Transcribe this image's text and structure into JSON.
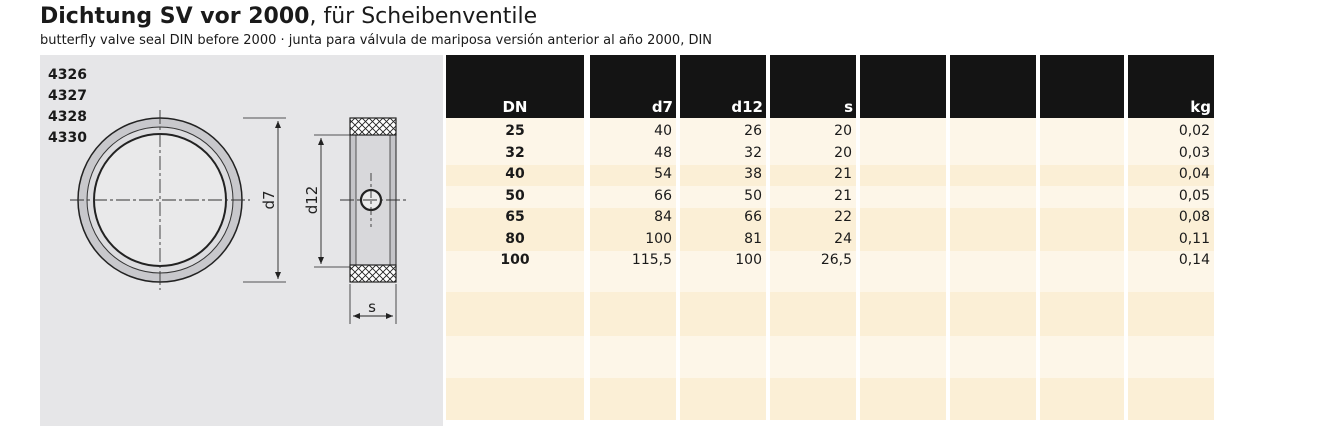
{
  "header": {
    "title_bold": "Dichtung SV vor 2000",
    "title_rest": ", für Scheibenventile",
    "subtitle": "butterfly valve seal DIN before 2000 · junta para válvula de mariposa versión anterior al año 2000, DIN"
  },
  "article_numbers": [
    "4326",
    "4327",
    "4328",
    "4330"
  ],
  "drawing": {
    "label_d7": "d7",
    "label_d12": "d12",
    "label_s": "s"
  },
  "table": {
    "columns": [
      "DN",
      "d7",
      "d12",
      "s",
      "",
      "",
      "",
      "kg"
    ],
    "rows": [
      [
        "25",
        "40",
        "26",
        "20",
        "",
        "",
        "",
        "0,02"
      ],
      [
        "32",
        "48",
        "32",
        "20",
        "",
        "",
        "",
        "0,03"
      ],
      [
        "40",
        "54",
        "38",
        "21",
        "",
        "",
        "",
        "0,04"
      ],
      [
        "50",
        "66",
        "50",
        "21",
        "",
        "",
        "",
        "0,05"
      ],
      [
        "65",
        "84",
        "66",
        "22",
        "",
        "",
        "",
        "0,08"
      ],
      [
        "80",
        "100",
        "81",
        "24",
        "",
        "",
        "",
        "0,11"
      ],
      [
        "100",
        "115,5",
        "100",
        "26,5",
        "",
        "",
        "",
        "0,14"
      ]
    ]
  },
  "colors": {
    "header_bg": "#141414",
    "band_light": "#fdf6e8",
    "band_dark": "#fbefd6",
    "panel_bg": "#e6e6e8"
  }
}
